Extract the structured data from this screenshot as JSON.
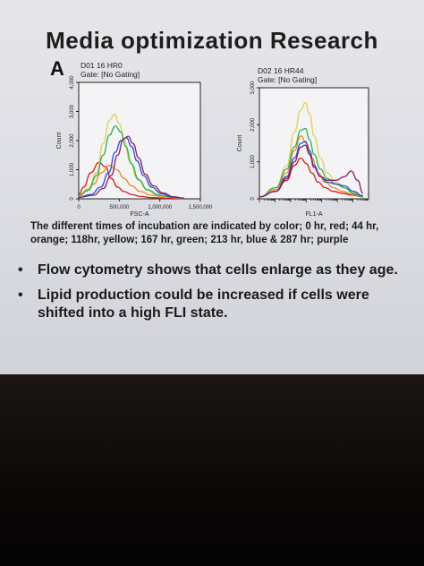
{
  "slide": {
    "title": "Media optimization Research",
    "panel_letter": "A",
    "caption": "The different times of incubation are indicated by color; 0 hr, red; 44 hr, orange; 118hr, yellow; 167 hr, green; 213 hr, blue & 287 hr; purple",
    "bullets": [
      "Flow cytometry shows that cells enlarge as they age.",
      "Lipid production could be increased if cells were shifted into a high FLI state."
    ]
  },
  "chart_data": [
    {
      "type": "line",
      "name_label": "D01 16 HR0",
      "gate_label": "Gate: [No Gating]",
      "xlabel": "FSC-A",
      "ylabel": "Count",
      "xlim": [
        0,
        1500000
      ],
      "ylim": [
        0,
        4000
      ],
      "xticks": [
        0,
        500000,
        1000000,
        1500000
      ],
      "xtick_labels": [
        "0",
        "500,000",
        "1,000,000",
        "1,500,000"
      ],
      "yticks": [
        0,
        1000,
        2000,
        3000,
        4000
      ],
      "ytick_labels": [
        "0",
        "1,000",
        "2,000",
        "3,000",
        "4,000"
      ],
      "series": [
        {
          "color": "#d21f1f",
          "x": [
            0,
            60000,
            150000,
            250000,
            330000,
            400000,
            480000,
            560000,
            650000,
            760000,
            900000,
            1100000,
            1300000
          ],
          "y": [
            150,
            400,
            900,
            1250,
            1100,
            700,
            400,
            250,
            150,
            80,
            40,
            20,
            10
          ]
        },
        {
          "color": "#ee8a22",
          "x": [
            0,
            80000,
            180000,
            280000,
            380000,
            470000,
            560000,
            650000,
            760000,
            900000,
            1100000,
            1300000
          ],
          "y": [
            120,
            250,
            500,
            900,
            1150,
            1000,
            700,
            450,
            250,
            120,
            50,
            20
          ]
        },
        {
          "color": "#e2cf55",
          "x": [
            0,
            120000,
            220000,
            300000,
            380000,
            440000,
            500000,
            560000,
            630000,
            720000,
            830000,
            950000,
            1100000,
            1300000
          ],
          "y": [
            100,
            350,
            900,
            1900,
            2700,
            2900,
            2600,
            2000,
            1300,
            700,
            350,
            150,
            60,
            20
          ]
        },
        {
          "color": "#2fb054",
          "x": [
            0,
            120000,
            220000,
            300000,
            380000,
            450000,
            520000,
            580000,
            650000,
            740000,
            850000,
            1000000,
            1150000,
            1300000
          ],
          "y": [
            100,
            300,
            800,
            1500,
            2200,
            2500,
            2300,
            1800,
            1200,
            650,
            300,
            120,
            50,
            20
          ]
        },
        {
          "color": "#2b4fd0",
          "x": [
            0,
            150000,
            270000,
            370000,
            450000,
            520000,
            590000,
            650000,
            720000,
            800000,
            900000,
            1020000,
            1150000,
            1300000
          ],
          "y": [
            50,
            150,
            400,
            900,
            1600,
            2000,
            2100,
            1800,
            1300,
            800,
            400,
            180,
            60,
            20
          ]
        },
        {
          "color": "#8a1f6e",
          "x": [
            0,
            180000,
            300000,
            400000,
            480000,
            550000,
            610000,
            670000,
            740000,
            820000,
            920000,
            1040000,
            1170000,
            1300000
          ],
          "y": [
            50,
            120,
            350,
            800,
            1500,
            2050,
            2150,
            1900,
            1400,
            850,
            450,
            200,
            70,
            20
          ]
        }
      ]
    },
    {
      "type": "line",
      "name_label": "D02 16 HR44",
      "gate_label": "Gate: [No Gating]",
      "xlabel": "FL1-A",
      "ylabel": "Count",
      "xlim": [
        0,
        100
      ],
      "ylim": [
        0,
        3000
      ],
      "yticks": [
        0,
        1000,
        2000,
        3000
      ],
      "ytick_labels": [
        "0",
        "1,000",
        "2,000",
        "3,000"
      ],
      "series": [
        {
          "color": "#d21f1f",
          "x": [
            0,
            15,
            25,
            32,
            38,
            43,
            48,
            54,
            60,
            68,
            76,
            85,
            95
          ],
          "y": [
            50,
            200,
            500,
            900,
            1100,
            950,
            700,
            450,
            300,
            200,
            150,
            100,
            50
          ]
        },
        {
          "color": "#ee8a22",
          "x": [
            0,
            15,
            25,
            32,
            38,
            43,
            48,
            54,
            60,
            68,
            76,
            85,
            95
          ],
          "y": [
            50,
            250,
            700,
            1300,
            1700,
            1500,
            1100,
            700,
            450,
            300,
            200,
            120,
            60
          ]
        },
        {
          "color": "#e2cf55",
          "x": [
            0,
            15,
            25,
            32,
            38,
            42,
            46,
            50,
            56,
            62,
            70,
            78,
            86,
            95
          ],
          "y": [
            50,
            300,
            900,
            1800,
            2400,
            2600,
            2300,
            1700,
            1100,
            700,
            450,
            300,
            150,
            60
          ]
        },
        {
          "color": "#2fb054",
          "x": [
            0,
            15,
            25,
            32,
            38,
            42,
            46,
            50,
            56,
            62,
            70,
            78,
            86,
            95
          ],
          "y": [
            50,
            300,
            800,
            1400,
            1850,
            1900,
            1600,
            1200,
            800,
            550,
            400,
            300,
            150,
            60
          ]
        },
        {
          "color": "#2b4fd0",
          "x": [
            0,
            15,
            25,
            32,
            38,
            42,
            46,
            50,
            56,
            62,
            70,
            78,
            86,
            95
          ],
          "y": [
            50,
            200,
            600,
            1100,
            1500,
            1550,
            1300,
            900,
            600,
            450,
            400,
            350,
            200,
            80
          ]
        },
        {
          "color": "#8a1f6e",
          "x": [
            0,
            15,
            25,
            32,
            38,
            42,
            46,
            50,
            56,
            62,
            70,
            78,
            84,
            90,
            95
          ],
          "y": [
            50,
            200,
            550,
            1000,
            1400,
            1450,
            1200,
            850,
            600,
            500,
            500,
            600,
            750,
            500,
            150
          ]
        }
      ]
    }
  ]
}
